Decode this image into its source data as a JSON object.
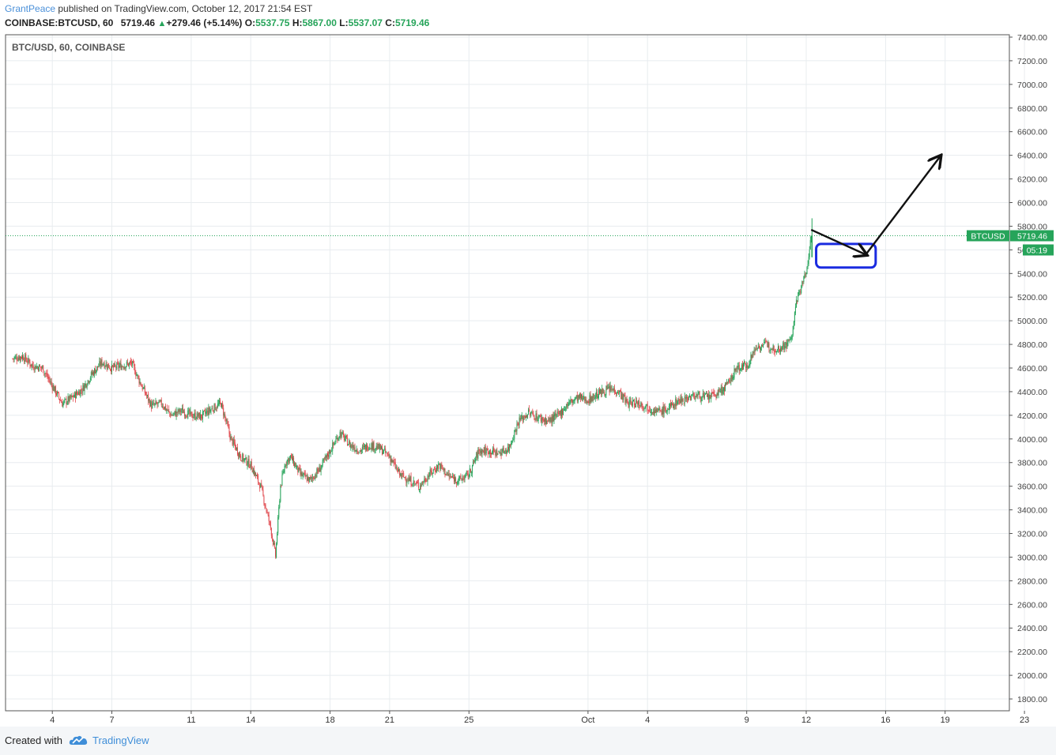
{
  "header": {
    "author": "GrantPeace",
    "published_text": " published on TradingView.com, October 12, 2017 21:54 EST"
  },
  "ohlc": {
    "symbol": "COINBASE:BTCUSD, 60",
    "last": "5719.46",
    "change": "+279.46 (+5.14%)",
    "open_label": "O:",
    "open": "5537.75",
    "high_label": "H:",
    "high": "5867.00",
    "low_label": "L:",
    "low": "5537.07",
    "close_label": "C:",
    "close": "5719.46"
  },
  "footer": {
    "created_with": "Created with",
    "brand": "TradingView"
  },
  "colors": {
    "up": "#26a45a",
    "down": "#e0474c",
    "grid": "#e8ecef",
    "annotation_box": "#1a2be0",
    "annotation_arrow": "#111111"
  },
  "icons": {
    "brand_logo": "cloud-icon",
    "up_arrow": "triangle-up-icon"
  },
  "chart_data": {
    "type": "candlestick",
    "title": "BTC/USD, 60, COINBASE",
    "interval": "60",
    "ylim": [
      1700,
      7420
    ],
    "yticks": [
      1800,
      2000,
      2200,
      2400,
      2600,
      2800,
      3000,
      3200,
      3400,
      3600,
      3800,
      4000,
      4200,
      4400,
      4600,
      4800,
      5000,
      5200,
      5400,
      5600,
      5800,
      6000,
      6200,
      6400,
      6600,
      6800,
      7000,
      7200,
      7400
    ],
    "ytick_labels": [
      "1800.00",
      "2000.00",
      "2200.00",
      "2400.00",
      "2600.00",
      "2800.00",
      "3000.00",
      "3200.00",
      "3400.00",
      "3600.00",
      "3800.00",
      "4000.00",
      "4200.00",
      "4400.00",
      "4600.00",
      "4800.00",
      "5000.00",
      "5200.00",
      "5400.00",
      "5600.00",
      "5800.00",
      "6000.00",
      "6200.00",
      "6400.00",
      "6600.00",
      "6800.00",
      "7000.00",
      "7200.00",
      "7400.00"
    ],
    "x_start": "2017-09-02",
    "xticks": [
      {
        "date": "2017-09-04",
        "label": "4"
      },
      {
        "date": "2017-09-07",
        "label": "7"
      },
      {
        "date": "2017-09-11",
        "label": "11"
      },
      {
        "date": "2017-09-14",
        "label": "14"
      },
      {
        "date": "2017-09-18",
        "label": "18"
      },
      {
        "date": "2017-09-21",
        "label": "21"
      },
      {
        "date": "2017-09-25",
        "label": "25"
      },
      {
        "date": "2017-10-01",
        "label": "Oct"
      },
      {
        "date": "2017-10-04",
        "label": "4"
      },
      {
        "date": "2017-10-09",
        "label": "9"
      },
      {
        "date": "2017-10-12",
        "label": "12"
      },
      {
        "date": "2017-10-16",
        "label": "16"
      },
      {
        "date": "2017-10-19",
        "label": "19"
      },
      {
        "date": "2017-10-23",
        "label": "23"
      }
    ],
    "close_path": [
      [
        "2017-09-02",
        4680
      ],
      [
        "2017-09-02T12:00",
        4700
      ],
      [
        "2017-09-03",
        4620
      ],
      [
        "2017-09-03T12:00",
        4600
      ],
      [
        "2017-09-04",
        4450
      ],
      [
        "2017-09-04T12:00",
        4300
      ],
      [
        "2017-09-05",
        4350
      ],
      [
        "2017-09-05T12:00",
        4420
      ],
      [
        "2017-09-06",
        4550
      ],
      [
        "2017-09-06T12:00",
        4650
      ],
      [
        "2017-09-07",
        4600
      ],
      [
        "2017-09-07T12:00",
        4620
      ],
      [
        "2017-09-08",
        4640
      ],
      [
        "2017-09-08T12:00",
        4450
      ],
      [
        "2017-09-09",
        4280
      ],
      [
        "2017-09-09T12:00",
        4300
      ],
      [
        "2017-09-10",
        4200
      ],
      [
        "2017-09-10T12:00",
        4240
      ],
      [
        "2017-09-11",
        4200
      ],
      [
        "2017-09-11T12:00",
        4190
      ],
      [
        "2017-09-12",
        4250
      ],
      [
        "2017-09-12T12:00",
        4300
      ],
      [
        "2017-09-13",
        4000
      ],
      [
        "2017-09-13T12:00",
        3850
      ],
      [
        "2017-09-14",
        3780
      ],
      [
        "2017-09-14T12:00",
        3600
      ],
      [
        "2017-09-15",
        3250
      ],
      [
        "2017-09-15T06:00",
        3010
      ],
      [
        "2017-09-15T12:00",
        3600
      ],
      [
        "2017-09-15T18:00",
        3800
      ],
      [
        "2017-09-16",
        3850
      ],
      [
        "2017-09-16T12:00",
        3700
      ],
      [
        "2017-09-17",
        3650
      ],
      [
        "2017-09-17T12:00",
        3750
      ],
      [
        "2017-09-18",
        3900
      ],
      [
        "2017-09-18T12:00",
        4050
      ],
      [
        "2017-09-19",
        3950
      ],
      [
        "2017-09-19T12:00",
        3900
      ],
      [
        "2017-09-20",
        3950
      ],
      [
        "2017-09-20T12:00",
        3920
      ],
      [
        "2017-09-21",
        3850
      ],
      [
        "2017-09-21T12:00",
        3700
      ],
      [
        "2017-09-22",
        3650
      ],
      [
        "2017-09-22T12:00",
        3600
      ],
      [
        "2017-09-23",
        3700
      ],
      [
        "2017-09-23T12:00",
        3780
      ],
      [
        "2017-09-24",
        3680
      ],
      [
        "2017-09-24T12:00",
        3650
      ],
      [
        "2017-09-25",
        3700
      ],
      [
        "2017-09-25T12:00",
        3900
      ],
      [
        "2017-09-26",
        3900
      ],
      [
        "2017-09-26T12:00",
        3880
      ],
      [
        "2017-09-27",
        3920
      ],
      [
        "2017-09-27T12:00",
        4150
      ],
      [
        "2017-09-28",
        4220
      ],
      [
        "2017-09-28T12:00",
        4180
      ],
      [
        "2017-09-29",
        4150
      ],
      [
        "2017-09-29T12:00",
        4200
      ],
      [
        "2017-09-30",
        4300
      ],
      [
        "2017-09-30T12:00",
        4350
      ],
      [
        "2017-10-01",
        4330
      ],
      [
        "2017-10-01T12:00",
        4380
      ],
      [
        "2017-10-02",
        4420
      ],
      [
        "2017-10-02T12:00",
        4410
      ],
      [
        "2017-10-03",
        4300
      ],
      [
        "2017-10-03T12:00",
        4310
      ],
      [
        "2017-10-04",
        4270
      ],
      [
        "2017-10-04T12:00",
        4230
      ],
      [
        "2017-10-05",
        4250
      ],
      [
        "2017-10-05T12:00",
        4320
      ],
      [
        "2017-10-06",
        4350
      ],
      [
        "2017-10-06T12:00",
        4370
      ],
      [
        "2017-10-07",
        4350
      ],
      [
        "2017-10-07T12:00",
        4380
      ],
      [
        "2017-10-08",
        4450
      ],
      [
        "2017-10-08T12:00",
        4600
      ],
      [
        "2017-10-09",
        4620
      ],
      [
        "2017-10-09T12:00",
        4780
      ],
      [
        "2017-10-10",
        4800
      ],
      [
        "2017-10-10T12:00",
        4760
      ],
      [
        "2017-10-11",
        4800
      ],
      [
        "2017-10-11T06:00",
        4850
      ],
      [
        "2017-10-11T12:00",
        5150
      ],
      [
        "2017-10-11T18:00",
        5300
      ],
      [
        "2017-10-12",
        5400
      ],
      [
        "2017-10-12T06:00",
        5720
      ]
    ],
    "last_price": {
      "label": "BTCUSD",
      "value": "5719.46",
      "countdown": "05:19"
    },
    "annotations": [
      {
        "type": "rectangle",
        "date_from": "2017-10-12T12:00",
        "date_to": "2017-10-15T12:00",
        "price_from": 5450,
        "price_to": 5650
      },
      {
        "type": "arrow",
        "from": [
          "2017-10-12T06:00",
          5770
        ],
        "to": [
          "2017-10-15",
          5560
        ]
      },
      {
        "type": "arrow",
        "from": [
          "2017-10-15",
          5560
        ],
        "to": [
          "2017-10-18T18:00",
          6390
        ]
      }
    ]
  }
}
